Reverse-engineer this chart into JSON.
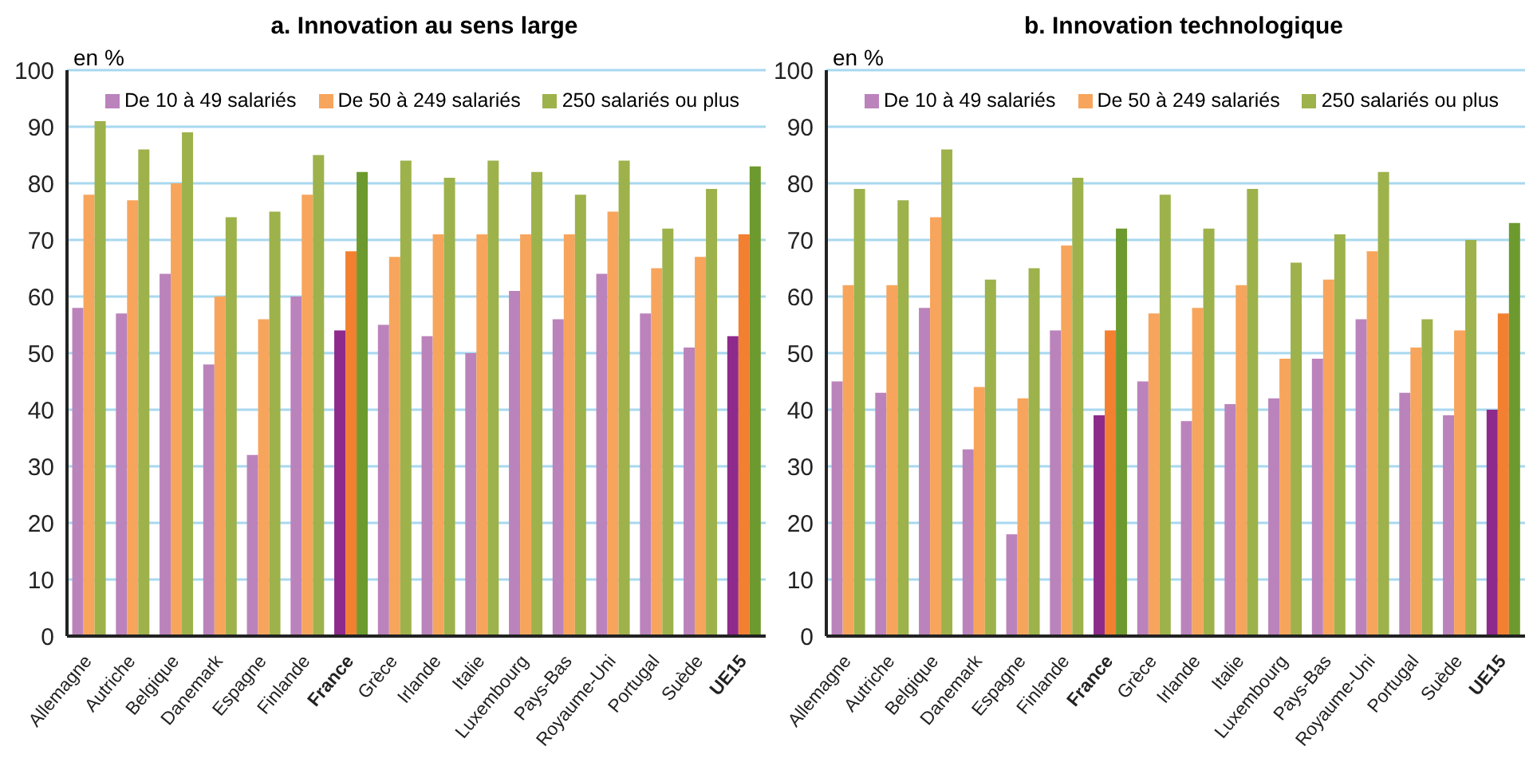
{
  "chart_data": [
    {
      "type": "bar",
      "title": "a. Innovation au sens large",
      "ylabel": "en %",
      "categories": [
        "Allemagne",
        "Autriche",
        "Belgique",
        "Danemark",
        "Espagne",
        "Finlande",
        "France",
        "Grèce",
        "Irlande",
        "Italie",
        "Luxembourg",
        "Pays-Bas",
        "Royaume-Uni",
        "Portugal",
        "Suède",
        "UE15"
      ],
      "series": [
        {
          "name": "De 10 à 49 salariés",
          "color": "#bb83bb",
          "colors": [
            "#bb83bb",
            "#bb83bb",
            "#bb83bb",
            "#bb83bb",
            "#bb83bb",
            "#bb83bb",
            "#8e2a8c",
            "#bb83bb",
            "#bb83bb",
            "#bb83bb",
            "#bb83bb",
            "#bb83bb",
            "#bb83bb",
            "#bb83bb",
            "#bb83bb",
            "#8e2a8c"
          ],
          "values": [
            58,
            57,
            64,
            48,
            32,
            60,
            54,
            55,
            53,
            50,
            61,
            56,
            64,
            57,
            51,
            53
          ]
        },
        {
          "name": "De 50 à 249 salariés",
          "color": "#f7a55c",
          "colors": [
            "#f7a55c",
            "#f7a55c",
            "#f7a55c",
            "#f7a55c",
            "#f7a55c",
            "#f7a55c",
            "#f28030",
            "#f7a55c",
            "#f7a55c",
            "#f7a55c",
            "#f7a55c",
            "#f7a55c",
            "#f7a55c",
            "#f7a55c",
            "#f7a55c",
            "#f28030"
          ],
          "values": [
            78,
            77,
            80,
            60,
            56,
            78,
            68,
            67,
            71,
            71,
            71,
            71,
            75,
            65,
            67,
            71
          ]
        },
        {
          "name": "250 salariés ou plus",
          "color": "#9db24b",
          "colors": [
            "#9db24b",
            "#9db24b",
            "#9db24b",
            "#9db24b",
            "#9db24b",
            "#9db24b",
            "#6d9a2e",
            "#9db24b",
            "#9db24b",
            "#9db24b",
            "#9db24b",
            "#9db24b",
            "#9db24b",
            "#9db24b",
            "#9db24b",
            "#6d9a2e"
          ],
          "values": [
            91,
            86,
            89,
            74,
            75,
            85,
            82,
            84,
            81,
            84,
            82,
            78,
            84,
            72,
            79,
            83
          ]
        }
      ],
      "ylim": [
        0,
        100
      ],
      "yticks": [
        0,
        10,
        20,
        30,
        40,
        50,
        60,
        70,
        80,
        90,
        100
      ],
      "grid": "y",
      "legend": "top"
    },
    {
      "type": "bar",
      "title": "b. Innovation technologique",
      "ylabel": "en %",
      "categories": [
        "Allemagne",
        "Autriche",
        "Belgique",
        "Danemark",
        "Espagne",
        "Finlande",
        "France",
        "Grèce",
        "Irlande",
        "Italie",
        "Luxembourg",
        "Pays-Bas",
        "Royaume-Uni",
        "Portugal",
        "Suède",
        "UE15"
      ],
      "series": [
        {
          "name": "De 10 à 49 salariés",
          "color": "#bb83bb",
          "colors": [
            "#bb83bb",
            "#bb83bb",
            "#bb83bb",
            "#bb83bb",
            "#bb83bb",
            "#bb83bb",
            "#8e2a8c",
            "#bb83bb",
            "#bb83bb",
            "#bb83bb",
            "#bb83bb",
            "#bb83bb",
            "#bb83bb",
            "#bb83bb",
            "#bb83bb",
            "#8e2a8c"
          ],
          "values": [
            45,
            43,
            58,
            33,
            18,
            54,
            39,
            45,
            38,
            41,
            42,
            49,
            56,
            43,
            39,
            40
          ]
        },
        {
          "name": "De 50 à 249 salariés",
          "color": "#f7a55c",
          "colors": [
            "#f7a55c",
            "#f7a55c",
            "#f7a55c",
            "#f7a55c",
            "#f7a55c",
            "#f7a55c",
            "#f28030",
            "#f7a55c",
            "#f7a55c",
            "#f7a55c",
            "#f7a55c",
            "#f7a55c",
            "#f7a55c",
            "#f7a55c",
            "#f7a55c",
            "#f28030"
          ],
          "values": [
            62,
            62,
            74,
            44,
            42,
            69,
            54,
            57,
            58,
            62,
            49,
            63,
            68,
            51,
            54,
            57
          ]
        },
        {
          "name": "250 salariés ou plus",
          "color": "#9db24b",
          "colors": [
            "#9db24b",
            "#9db24b",
            "#9db24b",
            "#9db24b",
            "#9db24b",
            "#9db24b",
            "#6d9a2e",
            "#9db24b",
            "#9db24b",
            "#9db24b",
            "#9db24b",
            "#9db24b",
            "#9db24b",
            "#9db24b",
            "#9db24b",
            "#6d9a2e"
          ],
          "values": [
            79,
            77,
            86,
            63,
            65,
            81,
            72,
            78,
            72,
            79,
            66,
            71,
            82,
            56,
            70,
            73
          ]
        }
      ],
      "ylim": [
        0,
        100
      ],
      "yticks": [
        0,
        10,
        20,
        30,
        40,
        50,
        60,
        70,
        80,
        90,
        100
      ],
      "grid": "y",
      "legend": "top"
    }
  ]
}
